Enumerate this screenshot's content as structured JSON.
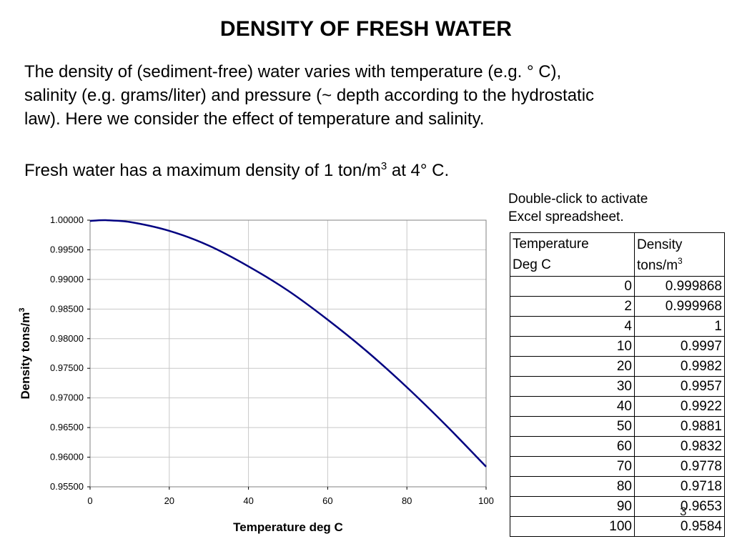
{
  "title": "DENSITY OF FRESH WATER",
  "intro": {
    "line1": "The density of (sediment-free) water varies with temperature (e.g. ° C),",
    "line2": "salinity (e.g. grams/liter) and pressure (~ depth according to the hydrostatic",
    "line3": "law).  Here we consider the effect of temperature and salinity."
  },
  "max_density": {
    "prefix": "Fresh water has a maximum density of  1 ton/m",
    "exponent": "3",
    "suffix": " at 4° C."
  },
  "spreadsheet_note": {
    "line1": "Double-click to activate",
    "line2": "Excel spreadsheet."
  },
  "table": {
    "header": {
      "col1_line1": "Temperature",
      "col1_line2": "Deg C",
      "col2_line1": "Density",
      "col2_line2": "tons/m",
      "col2_exp": "3"
    },
    "rows": [
      {
        "temp": "0",
        "density": "0.999868"
      },
      {
        "temp": "2",
        "density": "0.999968"
      },
      {
        "temp": "4",
        "density": "1"
      },
      {
        "temp": "10",
        "density": "0.9997"
      },
      {
        "temp": "20",
        "density": "0.9982"
      },
      {
        "temp": "30",
        "density": "0.9957"
      },
      {
        "temp": "40",
        "density": "0.9922"
      },
      {
        "temp": "50",
        "density": "0.9881"
      },
      {
        "temp": "60",
        "density": "0.9832"
      },
      {
        "temp": "70",
        "density": "0.9778"
      },
      {
        "temp": "80",
        "density": "0.9718"
      },
      {
        "temp": "90",
        "density": "0.9653"
      },
      {
        "temp": "100",
        "density": "0.9584"
      }
    ]
  },
  "page_number": "3",
  "chart_data": {
    "type": "line",
    "title": "",
    "xlabel": "Temperature deg C",
    "ylabel": "Density tons/m",
    "ylabel_exp": "3",
    "xlim": [
      0,
      100
    ],
    "ylim": [
      0.955,
      1.0
    ],
    "xticks": [
      0,
      20,
      40,
      60,
      80,
      100
    ],
    "xtick_labels": [
      "0",
      "20",
      "40",
      "60",
      "80",
      "100"
    ],
    "yticks": [
      0.955,
      0.96,
      0.965,
      0.97,
      0.975,
      0.98,
      0.985,
      0.99,
      0.995,
      1.0
    ],
    "ytick_labels": [
      "0.95500",
      "0.96000",
      "0.96500",
      "0.97000",
      "0.97500",
      "0.98000",
      "0.98500",
      "0.99000",
      "0.99500",
      "1.00000"
    ],
    "grid": true,
    "series": [
      {
        "color": "#000080",
        "x": [
          0,
          2,
          4,
          10,
          20,
          30,
          40,
          50,
          60,
          70,
          80,
          90,
          100
        ],
        "y": [
          0.999868,
          0.999968,
          1.0,
          0.9997,
          0.9982,
          0.9957,
          0.9922,
          0.9881,
          0.9832,
          0.9778,
          0.9718,
          0.9653,
          0.9584
        ]
      }
    ]
  }
}
